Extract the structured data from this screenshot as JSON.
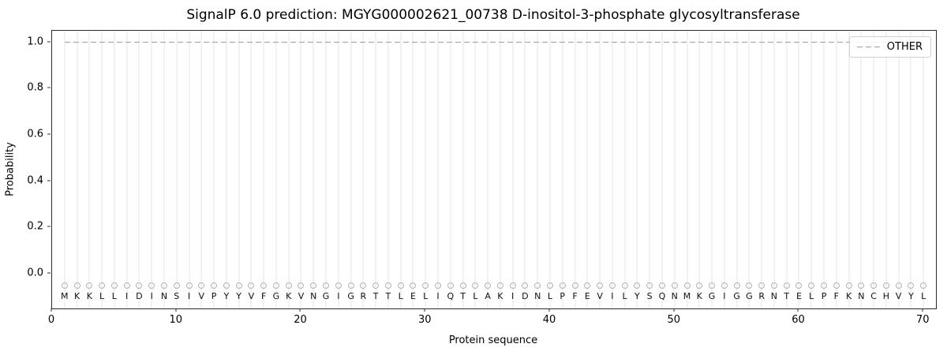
{
  "chart_data": {
    "type": "line",
    "title": "SignalP 6.0 prediction: MGYG000002621_00738 D-inositol-3-phosphate glycosyltransferase",
    "xlabel": "Protein sequence",
    "ylabel": "Probability",
    "xlim": [
      0,
      71
    ],
    "ylim": [
      -0.15,
      1.05
    ],
    "xticks": [
      0,
      10,
      20,
      30,
      40,
      50,
      60,
      70
    ],
    "yticks": [
      "0.0",
      "0.2",
      "0.4",
      "0.6",
      "0.8",
      "1.0"
    ],
    "grid": "vertical line at every residue position",
    "sequence": "MKKLLIDINSIVPYYVFGKVNGIGRTTLELIQTLAKIDNLPFEVILYSQNMKGIGGRNTELPFKNCHVYL",
    "sequence_y": -0.1,
    "residue_markers": {
      "shape": "open-circle",
      "color": "#b3b3b3",
      "y": -0.05
    },
    "series": [
      {
        "name": "OTHER",
        "color": "#ff7575",
        "linestyle": "dashed",
        "x_range": [
          1,
          70
        ],
        "constant_value": 1.0
      }
    ],
    "legend": {
      "position": "upper-right",
      "entries": [
        {
          "label": "OTHER",
          "color": "#ff7575",
          "linestyle": "dashed"
        }
      ]
    }
  },
  "colors": {
    "other_line": "#ff7575",
    "grid": "#e4e4e4",
    "marker": "#b3b3b3",
    "spine": "#2b2b2b",
    "background": "#ffffff"
  }
}
